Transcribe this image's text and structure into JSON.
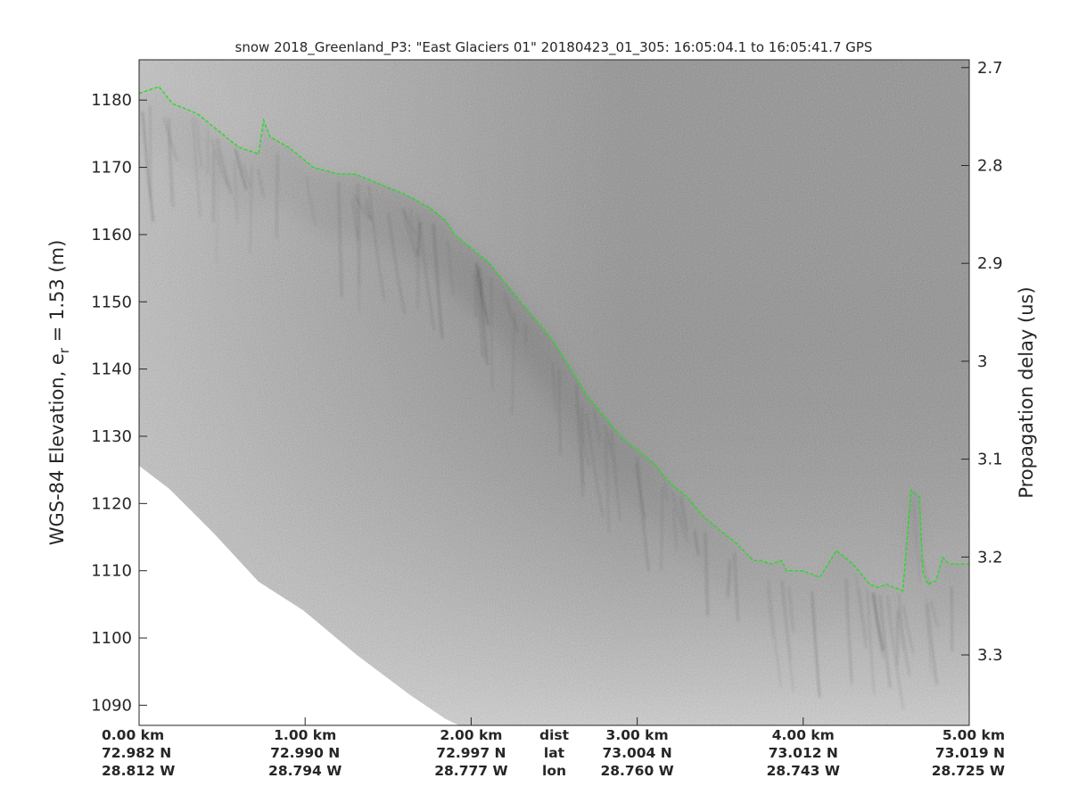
{
  "chart_data": {
    "type": "radar-echogram",
    "title": "snow 2018_Greenland_P3: \"East Glaciers 01\"  20180423_01_305: 16:05:04.1 to 16:05:41.7 GPS",
    "ylabel_main": "WGS-84 Elevation, e",
    "ylabel_sub": "r",
    "ylabel_tail": " = 1.53 (m)",
    "ylabel_right": "Propagation delay (us)",
    "ylim": [
      1087,
      1186
    ],
    "yticks": [
      1090,
      1100,
      1110,
      1120,
      1130,
      1140,
      1150,
      1160,
      1170,
      1180
    ],
    "y2lim": [
      2.692,
      3.372
    ],
    "y2ticks": [
      {
        "value": 2.7,
        "label": "2.7"
      },
      {
        "value": 2.8,
        "label": "2.8"
      },
      {
        "value": 2.9,
        "label": "2.9"
      },
      {
        "value": 3.0,
        "label": "3"
      },
      {
        "value": 3.1,
        "label": "3.1"
      },
      {
        "value": 3.2,
        "label": "3.2"
      },
      {
        "value": 3.3,
        "label": "3.3"
      }
    ],
    "xlim": [
      0,
      5
    ],
    "xunits": "km",
    "bottom_rows": [
      {
        "label": "dist",
        "values": [
          "0.00 km",
          "1.00 km",
          "2.00 km",
          "3.00 km",
          "4.00 km",
          "5.00 km"
        ]
      },
      {
        "label": "lat",
        "values": [
          "72.982 N",
          "72.990 N",
          "72.997 N",
          "73.004 N",
          "73.012 N",
          "73.019 N"
        ]
      },
      {
        "label": "lon",
        "values": [
          "28.812 W",
          "28.794 W",
          "28.777 W",
          "28.760 W",
          "28.743 W",
          "28.725 W"
        ]
      }
    ],
    "surface_layer": {
      "color": "#22dd22",
      "style": "dashed",
      "x": [
        0.0,
        0.12,
        0.2,
        0.35,
        0.45,
        0.6,
        0.72,
        0.75,
        0.79,
        0.9,
        1.05,
        1.2,
        1.3,
        1.4,
        1.5,
        1.6,
        1.75,
        1.85,
        1.9,
        2.0,
        2.1,
        2.2,
        2.3,
        2.4,
        2.5,
        2.6,
        2.7,
        2.8,
        2.9,
        3.0,
        3.1,
        3.2,
        3.3,
        3.4,
        3.5,
        3.6,
        3.7,
        3.75,
        3.8,
        3.87,
        3.9,
        4.0,
        4.1,
        4.2,
        4.3,
        4.4,
        4.45,
        4.5,
        4.6,
        4.65,
        4.7,
        4.72,
        4.75,
        4.8,
        4.84,
        4.88,
        4.92,
        5.0
      ],
      "y": [
        1181,
        1182,
        1179.5,
        1178,
        1176,
        1173,
        1172,
        1177,
        1174.5,
        1173,
        1170,
        1169,
        1169,
        1168,
        1167,
        1166,
        1164,
        1162,
        1160,
        1158,
        1156,
        1153,
        1150,
        1147,
        1144,
        1140,
        1136,
        1133,
        1130,
        1128,
        1126,
        1123,
        1121,
        1118,
        1116,
        1114,
        1111.5,
        1111.5,
        1111,
        1111.5,
        1110,
        1110,
        1109,
        1113,
        1111,
        1108,
        1107.5,
        1108,
        1107,
        1122,
        1121,
        1110,
        1108,
        1108.5,
        1112,
        1111,
        1111,
        1111
      ]
    }
  }
}
